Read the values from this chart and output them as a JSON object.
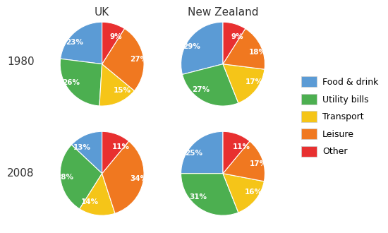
{
  "title_uk": "UK",
  "title_nz": "New Zealand",
  "label_1980": "1980",
  "label_2008": "2008",
  "legend_labels": [
    "Food & drink",
    "Utility bills",
    "Transport",
    "Leisure",
    "Other"
  ],
  "colors": [
    "#5B9BD5",
    "#4CAF50",
    "#F5C518",
    "#F07820",
    "#E83030"
  ],
  "uk_1980": [
    23,
    26,
    15,
    27,
    9
  ],
  "nz_1980": [
    29,
    27,
    17,
    18,
    9
  ],
  "uk_2008": [
    13,
    28,
    14,
    34,
    11
  ],
  "nz_2008": [
    25,
    31,
    16,
    17,
    11
  ],
  "pct_labels_uk_1980": [
    "23%",
    "26%",
    "15%",
    "27%",
    "9%"
  ],
  "pct_labels_nz_1980": [
    "29%",
    "27%",
    "17%",
    "18%",
    "9%"
  ],
  "pct_labels_uk_2008": [
    "13%",
    "28%",
    "14%",
    "34%",
    "11%"
  ],
  "pct_labels_nz_2008": [
    "25%",
    "31%",
    "16%",
    "17%",
    "11%"
  ],
  "startangle": 90,
  "background_color": "#FFFFFF",
  "text_color": "#333333",
  "label_fontsize": 7.5,
  "title_fontsize": 11,
  "row_label_fontsize": 11,
  "legend_fontsize": 9
}
